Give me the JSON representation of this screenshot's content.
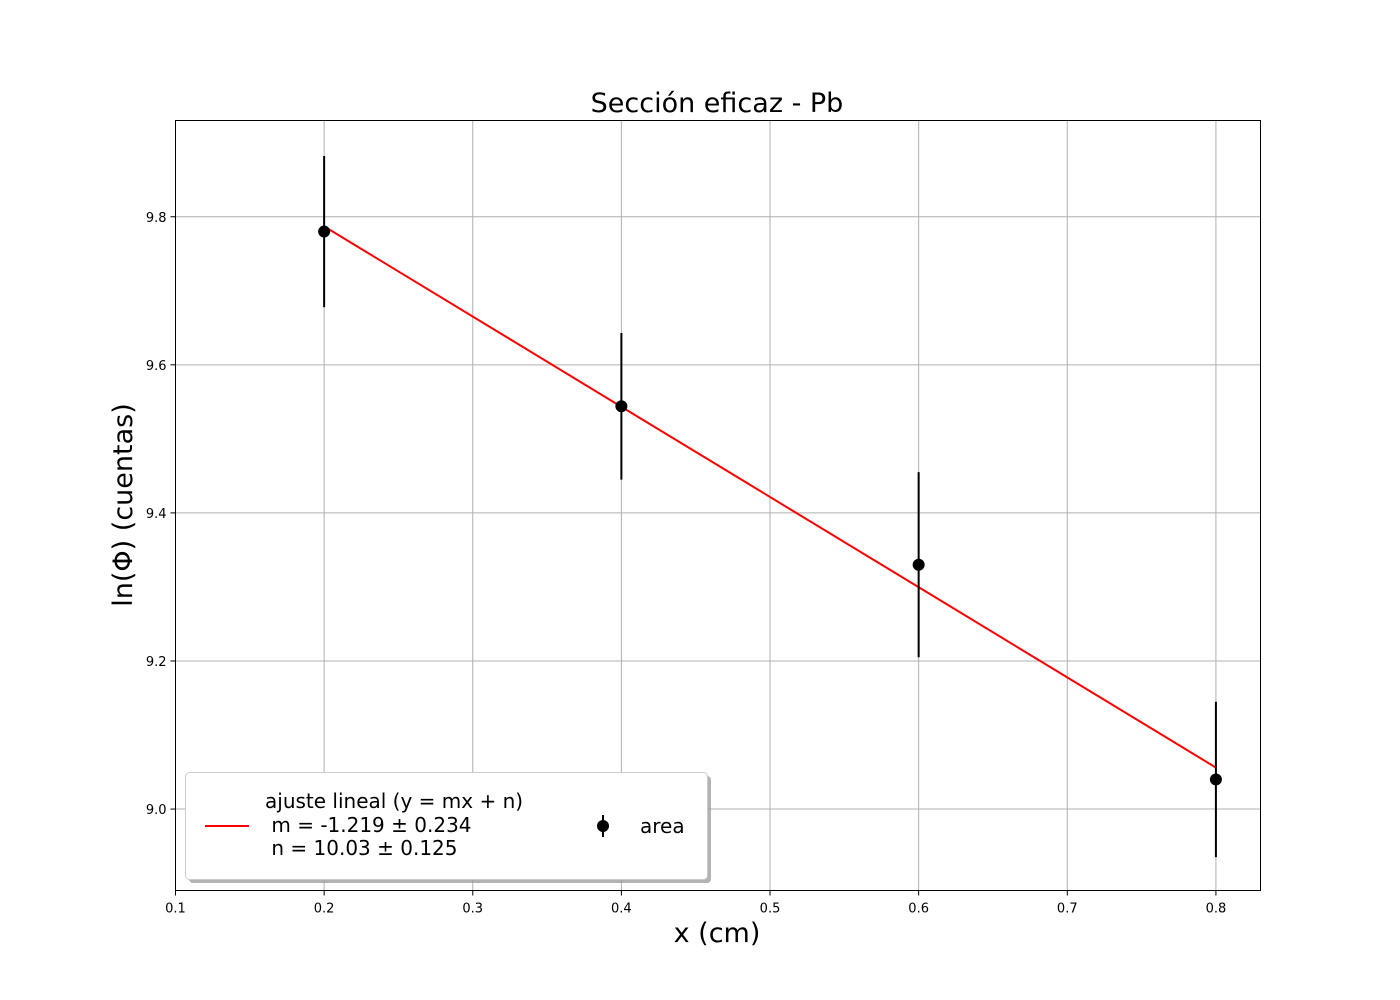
{
  "chart_data": {
    "type": "scatter",
    "title": "Sección eficaz - Pb",
    "xlabel": "x (cm)",
    "ylabel": "ln(Φ) (cuentas)",
    "xlim": [
      0.1,
      0.83
    ],
    "ylim": [
      8.89,
      9.93
    ],
    "xticks": [
      0.1,
      0.2,
      0.3,
      0.4,
      0.5,
      0.6,
      0.7,
      0.8
    ],
    "yticks": [
      9.0,
      9.2,
      9.4,
      9.6,
      9.8
    ],
    "grid": true,
    "legend_position": "lower-left",
    "series": [
      {
        "name": "area",
        "kind": "errorbar",
        "color": "#000000",
        "x": [
          0.2,
          0.4,
          0.6,
          0.8
        ],
        "y": [
          9.78,
          9.544,
          9.33,
          9.04
        ],
        "yerr": [
          0.102,
          0.099,
          0.125,
          0.105
        ]
      },
      {
        "name": "ajuste lineal (y = mx + n)",
        "name_lines": [
          "ajuste lineal (y = mx + n)",
          " m = -1.219 ± 0.234",
          " n = 10.03 ± 0.125"
        ],
        "kind": "line",
        "color": "#ff0000",
        "x": [
          0.2,
          0.8
        ],
        "y": [
          9.787,
          9.056
        ]
      }
    ]
  }
}
